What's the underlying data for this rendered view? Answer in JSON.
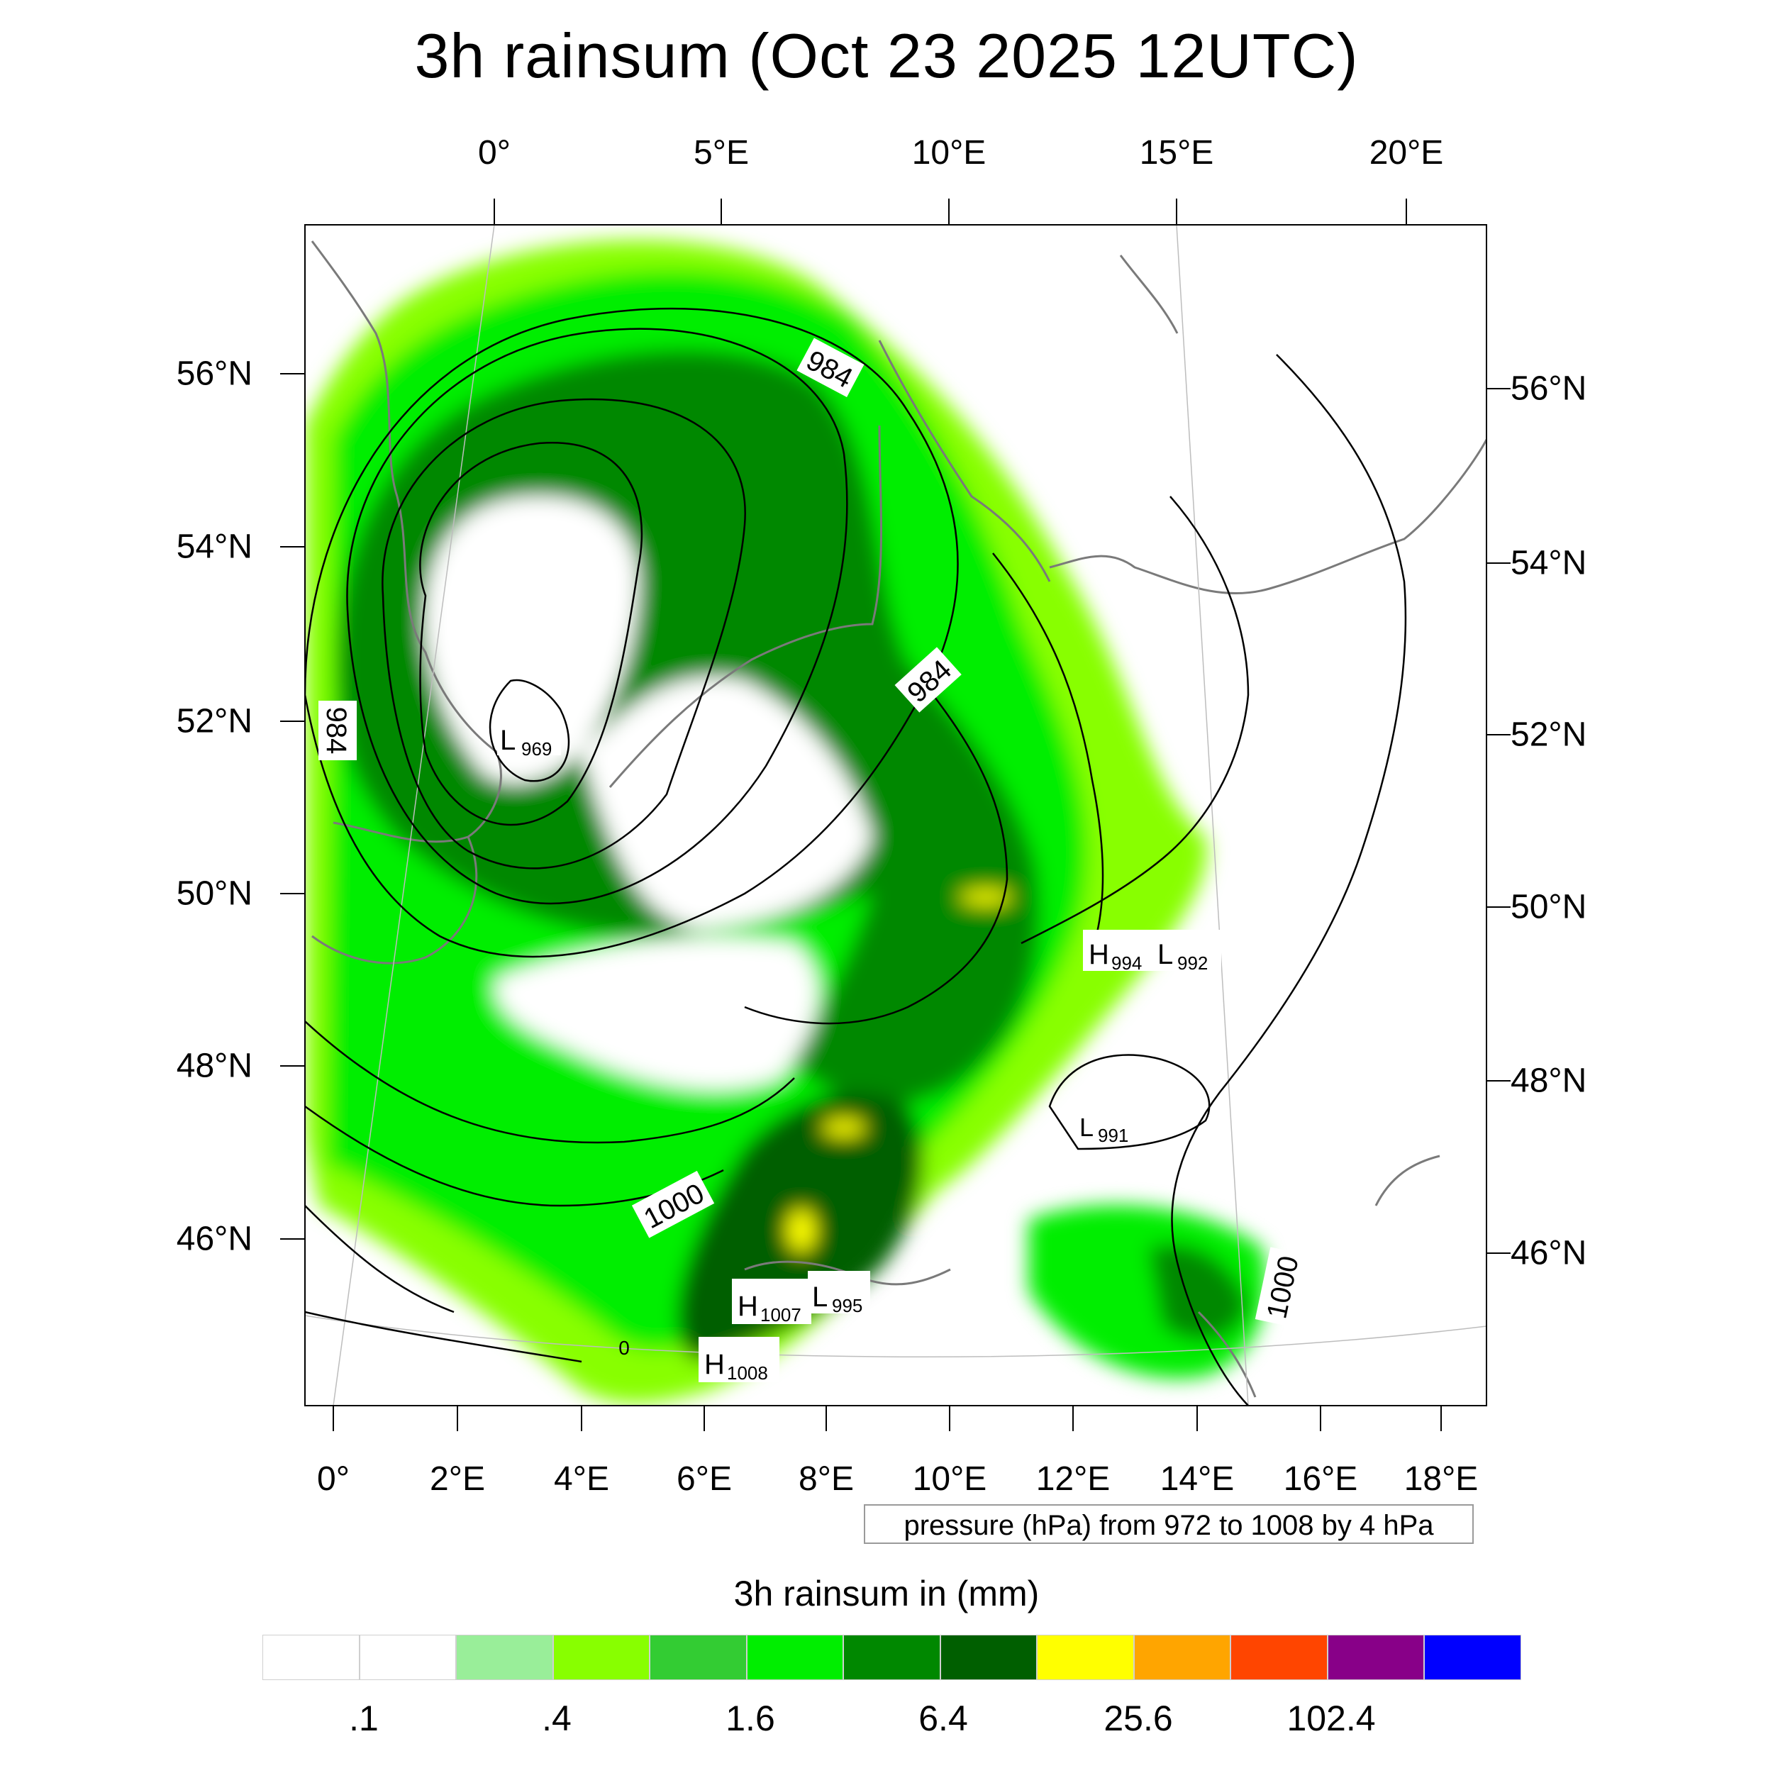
{
  "title": "3h rainsum (Oct 23 2025 12UTC)",
  "top_lon_labels": [
    "0°",
    "5°E",
    "10°E",
    "15°E",
    "20°E"
  ],
  "bottom_lon_labels": [
    "0°",
    "2°E",
    "4°E",
    "6°E",
    "8°E",
    "10°E",
    "12°E",
    "14°E",
    "16°E",
    "18°E"
  ],
  "left_lat_labels": [
    "56°N",
    "54°N",
    "52°N",
    "50°N",
    "48°N",
    "46°N"
  ],
  "right_lat_labels": [
    "56°N",
    "54°N",
    "52°N",
    "50°N",
    "48°N",
    "46°N"
  ],
  "contour_labels": [
    "984",
    "984",
    "984",
    "1000",
    "1000",
    "0"
  ],
  "pressure_centers": [
    {
      "type": "L",
      "value": "969"
    },
    {
      "type": "H",
      "value": "994"
    },
    {
      "type": "L",
      "value": "992"
    },
    {
      "type": "L",
      "value": "991"
    },
    {
      "type": "H",
      "value": "1007"
    },
    {
      "type": "L",
      "value": "995"
    },
    {
      "type": "H",
      "value": "1008"
    }
  ],
  "contour_note": "pressure (hPa) from 972 to 1008 by 4 hPa",
  "colorbar": {
    "title": "3h rainsum in (mm)",
    "labels": [
      ".1",
      ".4",
      "1.6",
      "6.4",
      "25.6",
      "102.4"
    ],
    "colors": [
      "#ffffff",
      "#ffffff",
      "#99ee99",
      "#88ff00",
      "#33cc33",
      "#00ee00",
      "#008800",
      "#005f00",
      "#ffff00",
      "#ffa500",
      "#ff4500",
      "#880088",
      "#0000ff"
    ]
  }
}
